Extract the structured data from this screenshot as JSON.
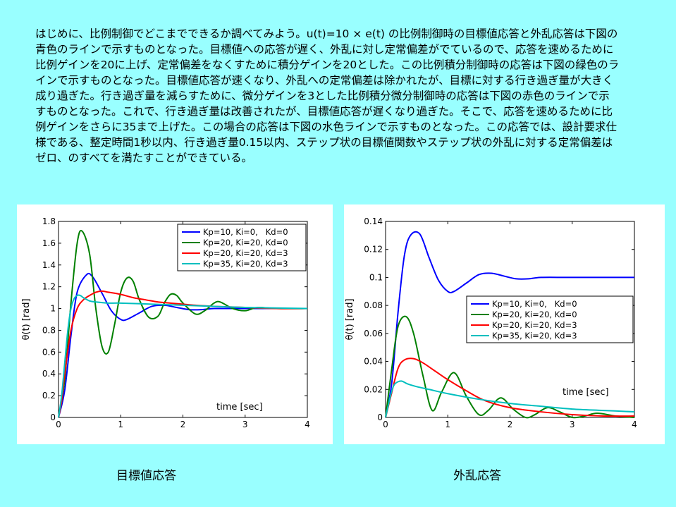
{
  "paragraph": "はじめに、比例制御でどこまでできるか調べてみよう。u(t)=10 × e(t) の比例制御時の目標値応答と外乱応答は下図の青色のラインで示すものとなった。目標値への応答が遅く、外乱に対し定常偏差がでているので、応答を速めるために比例ゲインを20に上げ、定常偏差をなくすために積分ゲインを20とした。この比例積分制御時の応答は下図の緑色のラインで示すものとなった。目標値応答が速くなり、外乱への定常偏差は除かれたが、目標に対する行き過ぎ量が大きく成り過ぎた。行き過ぎ量を減らすために、微分ゲインを3とした比例積分微分制御時の応答は下図の赤色のラインで示すものとなった。これで、行き過ぎ量は改善されたが、目標値応答が遅くなり過ぎた。そこで、応答を速めるために比例ゲインをさらに35まで上げた。この場合の応答は下図の水色ラインで示すものとなった。この応答では、設計要求仕様である、整定時間1秒以内、行き過ぎ量0.15以内、ステップ状の目標値関数やステップ状の外乱に対する定常偏差はゼロ、のすべてを満たすことができている。",
  "captions": {
    "left": "目標値応答",
    "right": "外乱応答"
  },
  "colors": {
    "background": "#99ffff",
    "blue": "#0000ff",
    "green": "#008000",
    "red": "#ff0000",
    "cyan": "#00bfbf"
  },
  "chart_data": [
    {
      "type": "line",
      "xlabel": "time [sec]",
      "ylabel": "θ(t) [rad]",
      "xlim": [
        0,
        4
      ],
      "ylim": [
        0,
        1.8
      ],
      "xticks": [
        "0",
        "1",
        "2",
        "3",
        "4"
      ],
      "yticks": [
        "0",
        "0.2",
        "0.4",
        "0.6",
        "0.8",
        "1",
        "1.2",
        "1.4",
        "1.6",
        "1.8"
      ],
      "legend_position": "top-right",
      "series": [
        {
          "name": "Kp=10, Ki=0,   Kd=0",
          "color": "#0000ff",
          "x": [
            0,
            0.1,
            0.2,
            0.3,
            0.45,
            0.55,
            0.7,
            0.85,
            1.0,
            1.1,
            1.3,
            1.5,
            1.7,
            1.9,
            2.1,
            2.3,
            2.5,
            2.8,
            3.0,
            3.5,
            4.0
          ],
          "y": [
            0,
            0.25,
            0.75,
            1.15,
            1.31,
            1.29,
            1.14,
            0.98,
            0.9,
            0.9,
            0.96,
            1.02,
            1.03,
            1.01,
            0.99,
            0.99,
            1.0,
            1.0,
            1.0,
            1.0,
            1.0
          ]
        },
        {
          "name": "Kp=20, Ki=20, Kd=0",
          "color": "#008000",
          "x": [
            0,
            0.1,
            0.2,
            0.3,
            0.38,
            0.5,
            0.6,
            0.7,
            0.8,
            0.9,
            1.0,
            1.1,
            1.2,
            1.3,
            1.45,
            1.6,
            1.7,
            1.8,
            1.9,
            2.0,
            2.2,
            2.35,
            2.5,
            2.6,
            2.8,
            3.0,
            3.2,
            3.5,
            4.0
          ],
          "y": [
            0,
            0.35,
            1.05,
            1.6,
            1.71,
            1.5,
            1.0,
            0.65,
            0.6,
            0.85,
            1.15,
            1.28,
            1.25,
            1.08,
            0.92,
            0.93,
            1.05,
            1.13,
            1.12,
            1.05,
            0.95,
            0.98,
            1.05,
            1.06,
            1.0,
            0.98,
            1.01,
            1.0,
            1.0
          ]
        },
        {
          "name": "Kp=20, Ki=20, Kd=3",
          "color": "#ff0000",
          "x": [
            0,
            0.05,
            0.1,
            0.2,
            0.3,
            0.4,
            0.5,
            0.6,
            0.7,
            0.8,
            1.0,
            1.2,
            1.4,
            1.6,
            1.8,
            2.0,
            2.2,
            2.5,
            3.0,
            3.5,
            4.0
          ],
          "y": [
            0,
            0.15,
            0.4,
            0.8,
            1.0,
            1.08,
            1.12,
            1.15,
            1.16,
            1.15,
            1.13,
            1.1,
            1.08,
            1.06,
            1.05,
            1.04,
            1.03,
            1.02,
            1.01,
            1.0,
            1.0
          ]
        },
        {
          "name": "Kp=35, Ki=20, Kd=3",
          "color": "#00bfbf",
          "x": [
            0,
            0.05,
            0.1,
            0.15,
            0.2,
            0.25,
            0.3,
            0.35,
            0.4,
            0.5,
            0.6,
            0.8,
            1.0,
            1.5,
            2.0,
            2.5,
            3.0,
            4.0
          ],
          "y": [
            0,
            0.2,
            0.5,
            0.8,
            1.0,
            1.09,
            1.12,
            1.12,
            1.1,
            1.07,
            1.06,
            1.05,
            1.05,
            1.04,
            1.03,
            1.02,
            1.01,
            1.0
          ]
        }
      ]
    },
    {
      "type": "line",
      "xlabel": "time [sec]",
      "ylabel": "θ(t) [rad]",
      "xlim": [
        0,
        4
      ],
      "ylim": [
        0,
        0.14
      ],
      "xticks": [
        "0",
        "1",
        "2",
        "3",
        "4"
      ],
      "yticks": [
        "0",
        "0.02",
        "0.04",
        "0.06",
        "0.08",
        "0.1",
        "0.12",
        "0.14"
      ],
      "legend_position": "center-right",
      "series": [
        {
          "name": "Kp=10, Ki=0,   Kd=0",
          "color": "#0000ff",
          "x": [
            0,
            0.1,
            0.2,
            0.3,
            0.4,
            0.55,
            0.7,
            0.85,
            1.0,
            1.1,
            1.3,
            1.5,
            1.7,
            1.9,
            2.1,
            2.3,
            2.5,
            3.0,
            4.0
          ],
          "y": [
            0,
            0.025,
            0.075,
            0.115,
            0.13,
            0.131,
            0.114,
            0.098,
            0.09,
            0.09,
            0.096,
            0.102,
            0.103,
            0.101,
            0.099,
            0.099,
            0.1,
            0.1,
            0.1
          ]
        },
        {
          "name": "Kp=20, Ki=20, Kd=0",
          "color": "#008000",
          "x": [
            0,
            0.1,
            0.2,
            0.33,
            0.45,
            0.6,
            0.75,
            0.9,
            1.1,
            1.3,
            1.5,
            1.65,
            1.85,
            2.05,
            2.25,
            2.4,
            2.6,
            2.8,
            3.0,
            3.2,
            3.4,
            3.7,
            4.0
          ],
          "y": [
            0,
            0.035,
            0.065,
            0.072,
            0.06,
            0.03,
            0.005,
            0.018,
            0.032,
            0.015,
            0.002,
            0.005,
            0.014,
            0.006,
            0.0,
            0.002,
            0.007,
            0.004,
            0.0,
            0.001,
            0.003,
            0.001,
            0.0
          ]
        },
        {
          "name": "Kp=20, Ki=20, Kd=3",
          "color": "#ff0000",
          "x": [
            0,
            0.1,
            0.2,
            0.3,
            0.45,
            0.6,
            0.8,
            1.0,
            1.3,
            1.6,
            2.0,
            2.5,
            3.0,
            3.5,
            4.0
          ],
          "y": [
            0,
            0.018,
            0.035,
            0.041,
            0.042,
            0.039,
            0.033,
            0.027,
            0.019,
            0.012,
            0.007,
            0.004,
            0.002,
            0.001,
            0.001
          ]
        },
        {
          "name": "Kp=35, Ki=20, Kd=3",
          "color": "#00bfbf",
          "x": [
            0,
            0.05,
            0.1,
            0.15,
            0.25,
            0.35,
            0.5,
            0.7,
            1.0,
            1.5,
            2.0,
            2.5,
            3.0,
            3.5,
            4.0
          ],
          "y": [
            0,
            0.01,
            0.019,
            0.024,
            0.026,
            0.024,
            0.022,
            0.02,
            0.017,
            0.013,
            0.01,
            0.008,
            0.006,
            0.005,
            0.004
          ]
        }
      ]
    }
  ]
}
